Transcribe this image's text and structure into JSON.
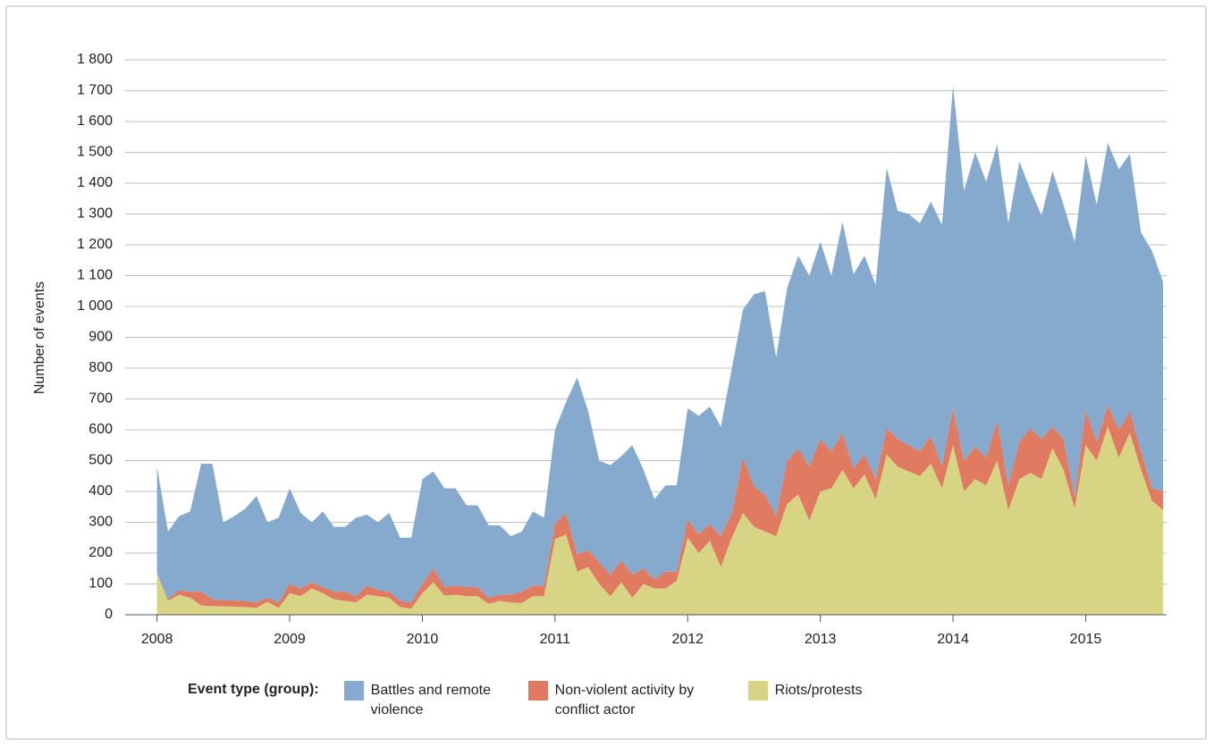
{
  "chart_data": {
    "type": "stacked-area",
    "y_label": "Number of events",
    "legend_title": "Event type (group):",
    "xlim": [
      2007.76,
      2015.61
    ],
    "xticks": [
      2008,
      2009,
      2010,
      2011,
      2012,
      2013,
      2014,
      2015
    ],
    "ylim": [
      0,
      1800
    ],
    "yticks": [
      0,
      100,
      200,
      300,
      400,
      500,
      600,
      700,
      800,
      900,
      {
        "value": 1000,
        "label": "1 000"
      },
      {
        "value": 1100,
        "label": "1 100"
      },
      {
        "value": 1200,
        "label": "1 200"
      },
      {
        "value": 1300,
        "label": "1 300"
      },
      {
        "value": 1400,
        "label": "1 400"
      },
      {
        "value": 1500,
        "label": "1 500"
      },
      {
        "value": 1600,
        "label": "1 600"
      },
      {
        "value": 1700,
        "label": "1 700"
      },
      {
        "value": 1800,
        "label": "1 800"
      }
    ],
    "grid": true,
    "x": [
      2008,
      2008.083,
      2008.167,
      2008.25,
      2008.333,
      2008.417,
      2008.5,
      2008.583,
      2008.667,
      2008.75,
      2008.833,
      2008.917,
      2009,
      2009.083,
      2009.167,
      2009.25,
      2009.333,
      2009.417,
      2009.5,
      2009.583,
      2009.667,
      2009.75,
      2009.833,
      2009.917,
      2010,
      2010.083,
      2010.167,
      2010.25,
      2010.333,
      2010.417,
      2010.5,
      2010.583,
      2010.667,
      2010.75,
      2010.833,
      2010.917,
      2011,
      2011.083,
      2011.167,
      2011.25,
      2011.333,
      2011.417,
      2011.5,
      2011.583,
      2011.667,
      2011.75,
      2011.833,
      2011.917,
      2012,
      2012.083,
      2012.167,
      2012.25,
      2012.333,
      2012.417,
      2012.5,
      2012.583,
      2012.667,
      2012.75,
      2012.833,
      2012.917,
      2013,
      2013.083,
      2013.167,
      2013.25,
      2013.333,
      2013.417,
      2013.5,
      2013.583,
      2013.667,
      2013.75,
      2013.833,
      2013.917,
      2014,
      2014.083,
      2014.167,
      2014.25,
      2014.333,
      2014.417,
      2014.5,
      2014.583,
      2014.667,
      2014.75,
      2014.833,
      2014.917,
      2015,
      2015.083,
      2015.167,
      2015.25,
      2015.333,
      2015.417,
      2015.5,
      2015.583
    ],
    "series": [
      {
        "name": "Battles and remote violence",
        "color": "#85aacd",
        "values": [
          345,
          220,
          240,
          260,
          415,
          440,
          252,
          274,
          300,
          345,
          245,
          275,
          310,
          245,
          195,
          245,
          210,
          210,
          255,
          230,
          220,
          255,
          205,
          210,
          340,
          315,
          320,
          315,
          265,
          265,
          235,
          225,
          190,
          195,
          240,
          220,
          305,
          360,
          575,
          450,
          330,
          355,
          340,
          420,
          320,
          260,
          280,
          280,
          360,
          385,
          380,
          355,
          470,
          480,
          625,
          660,
          515,
          560,
          625,
          620,
          640,
          570,
          685,
          630,
          645,
          630,
          845,
          740,
          750,
          740,
          760,
          785,
          1045,
          875,
          955,
          895,
          895,
          850,
          910,
          775,
          725,
          830,
          760,
          830,
          825,
          770,
          850,
          845,
          835,
          710,
          770,
          680
        ]
      },
      {
        "name": "Non-violent activity by conflict actor",
        "color": "#e07b62",
        "values": [
          0,
          5,
          15,
          20,
          45,
          22,
          21,
          20,
          20,
          18,
          13,
          18,
          30,
          25,
          20,
          20,
          25,
          30,
          20,
          30,
          20,
          20,
          20,
          20,
          30,
          45,
          28,
          30,
          30,
          30,
          20,
          20,
          25,
          37,
          35,
          35,
          50,
          70,
          55,
          55,
          70,
          70,
          70,
          75,
          50,
          30,
          55,
          30,
          60,
          60,
          55,
          100,
          80,
          180,
          130,
          120,
          65,
          140,
          150,
          175,
          170,
          120,
          120,
          65,
          65,
          65,
          85,
          90,
          85,
          80,
          90,
          70,
          120,
          100,
          105,
          90,
          130,
          80,
          120,
          145,
          130,
          70,
          100,
          35,
          115,
          60,
          70,
          90,
          70,
          60,
          40,
          60
        ]
      },
      {
        "name": "Riots/protests",
        "color": "#d7d584",
        "values": [
          135,
          45,
          65,
          55,
          30,
          28,
          27,
          26,
          25,
          22,
          42,
          22,
          70,
          60,
          85,
          70,
          50,
          45,
          40,
          65,
          60,
          55,
          25,
          20,
          70,
          105,
          62,
          65,
          60,
          60,
          35,
          45,
          40,
          38,
          60,
          60,
          245,
          260,
          140,
          155,
          100,
          60,
          105,
          55,
          100,
          85,
          85,
          110,
          250,
          200,
          240,
          155,
          250,
          330,
          285,
          270,
          255,
          360,
          390,
          305,
          400,
          410,
          470,
          410,
          455,
          375,
          520,
          480,
          465,
          450,
          490,
          410,
          550,
          400,
          440,
          420,
          500,
          340,
          440,
          460,
          440,
          540,
          470,
          345,
          550,
          500,
          610,
          510,
          590,
          470,
          370,
          340
        ]
      }
    ]
  }
}
